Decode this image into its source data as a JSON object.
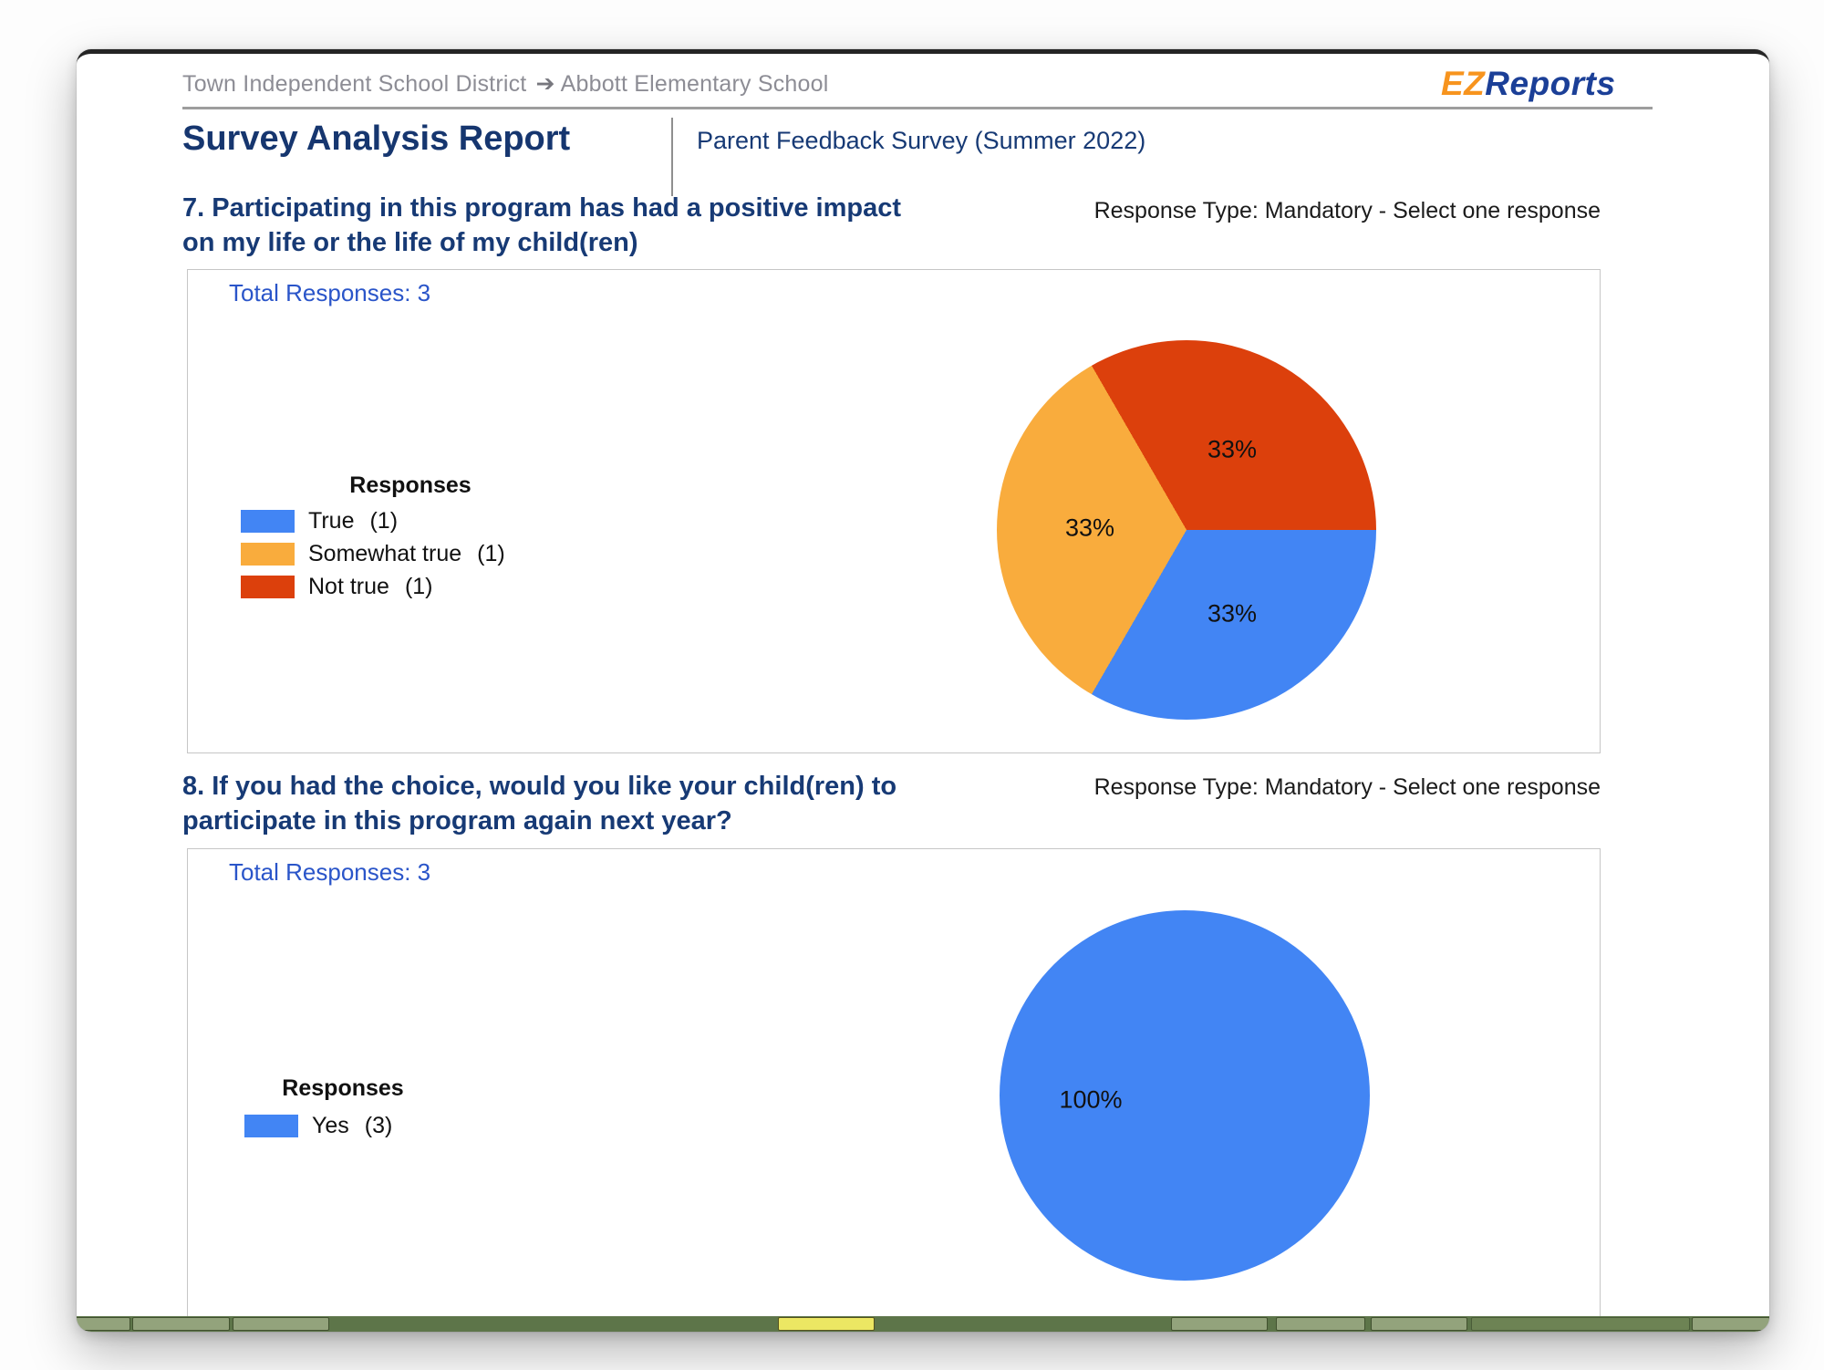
{
  "header": {
    "breadcrumb": {
      "district": "Town Independent School District",
      "arrow": "➔",
      "school": "Abbott Elementary School"
    },
    "logo": {
      "ez": "EZ",
      "reports": "Reports"
    },
    "title": "Survey Analysis Report",
    "subtitle": "Parent Feedback Survey (Summer 2022)"
  },
  "questions": [
    {
      "heading_lines": [
        "7. Participating in this program has had a positive impact",
        "on my life or the life of my child(ren)"
      ],
      "response_type": "Response Type: Mandatory - Select one response",
      "total_responses": "Total Responses: 3"
    },
    {
      "heading_lines": [
        "8. If you had the choice, would you like your child(ren) to",
        "participate in this program again next year?"
      ],
      "response_type": "Response Type: Mandatory - Select one response",
      "total_responses": "Total Responses: 3"
    }
  ],
  "chart_data": [
    {
      "type": "pie",
      "title": "7. Participating in this program has had a positive impact on my life or the life of my child(ren)",
      "total_responses": 3,
      "legend_title": "Responses",
      "legend_position": "left",
      "rotation_deg": 90,
      "legend": [
        {
          "label": "True",
          "count": "(1)",
          "color": "#4285F4"
        },
        {
          "label": "Somewhat true",
          "count": "(1)",
          "color": "#F9AC3D"
        },
        {
          "label": "Not true",
          "count": "(1)",
          "color": "#DC400C"
        }
      ],
      "values": [
        1,
        1,
        1
      ],
      "percent_labels": [
        "33%",
        "33%",
        "33%"
      ]
    },
    {
      "type": "pie",
      "title": "8. If you had the choice, would you like your child(ren) to participate in this program again next year?",
      "total_responses": 3,
      "legend_title": "Responses",
      "legend_position": "left",
      "rotation_deg": 0,
      "legend": [
        {
          "label": "Yes",
          "count": "(3)",
          "color": "#4285F4"
        }
      ],
      "values": [
        3
      ],
      "percent_labels": [
        "100%"
      ]
    }
  ],
  "colors": {
    "heading_navy": "#173a75",
    "link_blue": "#2a55c9",
    "logo_orange": "#f7941e",
    "logo_navy": "#1b3f97"
  }
}
